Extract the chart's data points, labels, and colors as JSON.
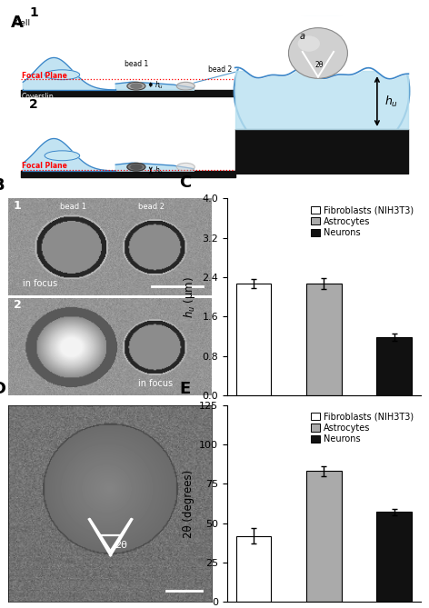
{
  "panel_C": {
    "values": [
      2.27,
      2.27,
      1.18
    ],
    "errors": [
      0.09,
      0.11,
      0.07
    ],
    "colors": [
      "#ffffff",
      "#aaaaaa",
      "#111111"
    ],
    "ylabel": "$h_u$ (µm)",
    "ylim": [
      0,
      4.0
    ],
    "yticks": [
      0.0,
      0.8,
      1.6,
      2.4,
      3.2,
      4.0
    ],
    "legend_labels": [
      "Fibroblasts (NIH3T3)",
      "Astrocytes",
      "Neurons"
    ],
    "legend_colors": [
      "#ffffff",
      "#aaaaaa",
      "#111111"
    ]
  },
  "panel_E": {
    "values": [
      42,
      83,
      57
    ],
    "errors": [
      5,
      3,
      2
    ],
    "colors": [
      "#ffffff",
      "#aaaaaa",
      "#111111"
    ],
    "ylabel": "2θ (degrees)",
    "ylim": [
      0,
      125
    ],
    "yticks": [
      0,
      25,
      50,
      75,
      100,
      125
    ],
    "legend_labels": [
      "Fibroblasts (NIH3T3)",
      "Astrocytes",
      "Neurons"
    ],
    "legend_colors": [
      "#ffffff",
      "#aaaaaa",
      "#111111"
    ]
  },
  "label_fontsize": 8.5,
  "panel_label_fontsize": 13,
  "tick_fontsize": 8,
  "legend_fontsize": 7,
  "bar_width": 0.5,
  "bar_edgecolor": "#000000",
  "bar_linewidth": 0.8,
  "error_color": "#000000",
  "error_linewidth": 1.0,
  "error_capsize": 2.5,
  "background_color": "#ffffff",
  "gray_bg": "#888888",
  "mid_gray": "#666666",
  "light_blue": "#b8dff0",
  "coverslip_color": "#111111",
  "cell_edge_color": "#3a85c8",
  "bead_gray": "#999999"
}
